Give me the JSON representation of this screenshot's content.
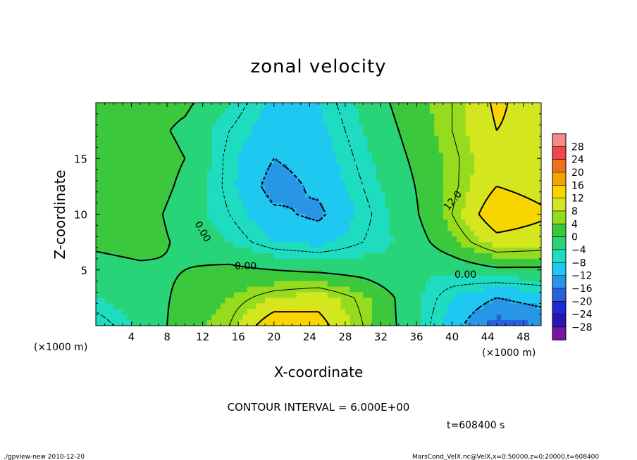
{
  "chart_data": {
    "type": "heatmap",
    "title": "zonal velocity",
    "xlabel": "X-coordinate",
    "ylabel": "Z-coordinate",
    "x_unit_label": "(×1000 m)",
    "y_unit_label": "(×1000 m)",
    "xlim": [
      0,
      50
    ],
    "ylim": [
      0,
      20
    ],
    "x_ticks": [
      4,
      8,
      12,
      16,
      20,
      24,
      28,
      32,
      36,
      40,
      44,
      48
    ],
    "y_ticks": [
      5,
      10,
      15
    ],
    "colorbar": {
      "levels": [
        -28,
        -24,
        -20,
        -16,
        -12,
        -8,
        -4,
        0,
        4,
        8,
        12,
        16,
        20,
        24,
        28
      ],
      "labels": [
        "28",
        "24",
        "20",
        "16",
        "12",
        "8",
        "4",
        "0",
        "−4",
        "−8",
        "−12",
        "−16",
        "−20",
        "−24",
        "−28"
      ],
      "colors": [
        "#f28c8c",
        "#f04848",
        "#f07018",
        "#f4a400",
        "#f8d400",
        "#d4e61e",
        "#96dc1e",
        "#3cc83c",
        "#28d478",
        "#1edcc0",
        "#1ec8f0",
        "#2896e6",
        "#2860dc",
        "#1e2ad2",
        "#2814b4",
        "#7814a0"
      ]
    },
    "contour_interval_text": "CONTOUR INTERVAL = 6.000E+00",
    "contour_labels": [
      "0.00",
      "0.00",
      "0.00",
      "12.0"
    ],
    "time_text": "t=608400 s",
    "field": {
      "description_values": "approximate zonal velocity (m/s) sampled on a coarse grid, rows from z=20 down to z=0, columns x=0..50 step 5",
      "x": [
        0,
        5,
        10,
        15,
        20,
        25,
        30,
        35,
        40,
        45,
        50
      ],
      "z": [
        20,
        17.5,
        15,
        12.5,
        10,
        7.5,
        5,
        2.5,
        0
      ],
      "values": [
        [
          3,
          2,
          1,
          -4,
          -9,
          -8,
          -3,
          2,
          6,
          13,
          9
        ],
        [
          4,
          2,
          -1,
          -6,
          -10,
          -9,
          -4,
          1,
          6,
          12,
          10
        ],
        [
          4,
          3,
          0,
          -7,
          -12,
          -10,
          -5,
          0,
          5,
          11,
          9
        ],
        [
          3,
          3,
          -1,
          -7,
          -14,
          -11,
          -6,
          -1,
          5,
          12,
          10
        ],
        [
          2,
          2,
          -2,
          -6,
          -11,
          -13,
          -7,
          -2,
          6,
          16,
          13
        ],
        [
          1,
          2,
          -1,
          -4,
          -8,
          -9,
          -6,
          -3,
          3,
          10,
          9
        ],
        [
          -2,
          -1,
          0,
          1,
          0,
          -1,
          -2,
          -4,
          -3,
          -1,
          -1
        ],
        [
          -4,
          -2,
          1,
          4,
          8,
          10,
          5,
          -2,
          -8,
          -12,
          -10
        ],
        [
          -8,
          -3,
          2,
          6,
          16,
          14,
          6,
          -2,
          -10,
          -18,
          -16
        ]
      ]
    }
  },
  "footer": {
    "left": "./gpview-new   2010-12-20",
    "right": "MarsCond_VelX.nc@VelX,x=0:50000,z=0:20000,t=608400"
  }
}
